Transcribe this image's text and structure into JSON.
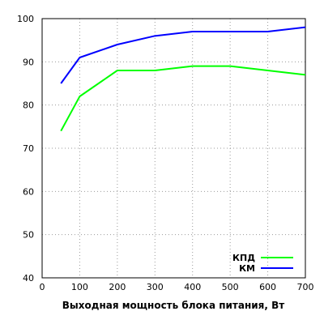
{
  "chart_data": {
    "type": "line",
    "x": [
      50,
      100,
      200,
      300,
      400,
      500,
      600,
      700
    ],
    "xlabel": "Выходная мощность блока питания, Вт",
    "ylabel": "",
    "xlim": [
      0,
      700
    ],
    "ylim": [
      40,
      100
    ],
    "xticks": [
      0,
      100,
      200,
      300,
      400,
      500,
      600,
      700
    ],
    "yticks": [
      40,
      50,
      60,
      70,
      80,
      90,
      100
    ],
    "grid": true,
    "legend_position": "bottom-right",
    "series": [
      {
        "name": "КПД",
        "color": "#00ff00",
        "values": [
          74,
          82,
          88,
          88,
          89,
          89,
          88,
          87
        ]
      },
      {
        "name": "КМ",
        "color": "#0000ff",
        "values": [
          85,
          91,
          94,
          96,
          97,
          97,
          97,
          98
        ]
      }
    ]
  }
}
